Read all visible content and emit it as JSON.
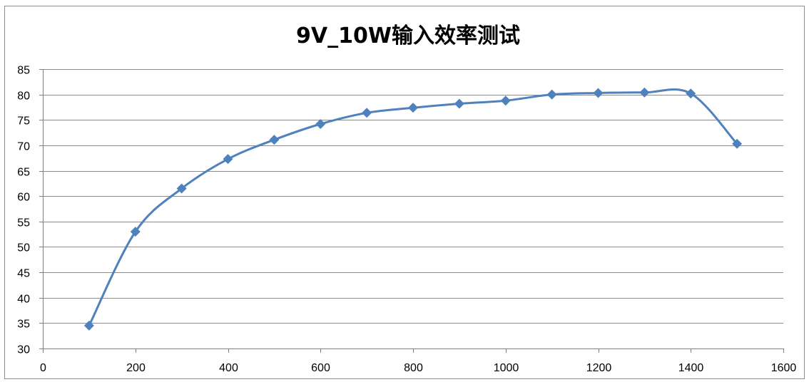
{
  "chart_data": {
    "type": "line",
    "title": "9V_10W输入效率测试",
    "xlabel": "",
    "ylabel": "",
    "xlim": [
      0,
      1600
    ],
    "ylim": [
      30,
      85
    ],
    "xticks": [
      0,
      200,
      400,
      600,
      800,
      1000,
      1200,
      1400,
      1600
    ],
    "yticks": [
      30,
      35,
      40,
      45,
      50,
      55,
      60,
      65,
      70,
      75,
      80,
      85
    ],
    "grid": true,
    "legend": "none",
    "smooth": true,
    "marker": "diamond",
    "series": [
      {
        "color": "#4f81bd",
        "x": [
          100,
          200,
          300,
          400,
          500,
          600,
          700,
          800,
          900,
          1000,
          1100,
          1200,
          1300,
          1400,
          1500
        ],
        "y": [
          34.5,
          53.0,
          61.5,
          67.3,
          71.1,
          74.2,
          76.4,
          77.4,
          78.2,
          78.8,
          80.0,
          80.3,
          80.4,
          80.2,
          70.3
        ]
      }
    ]
  }
}
